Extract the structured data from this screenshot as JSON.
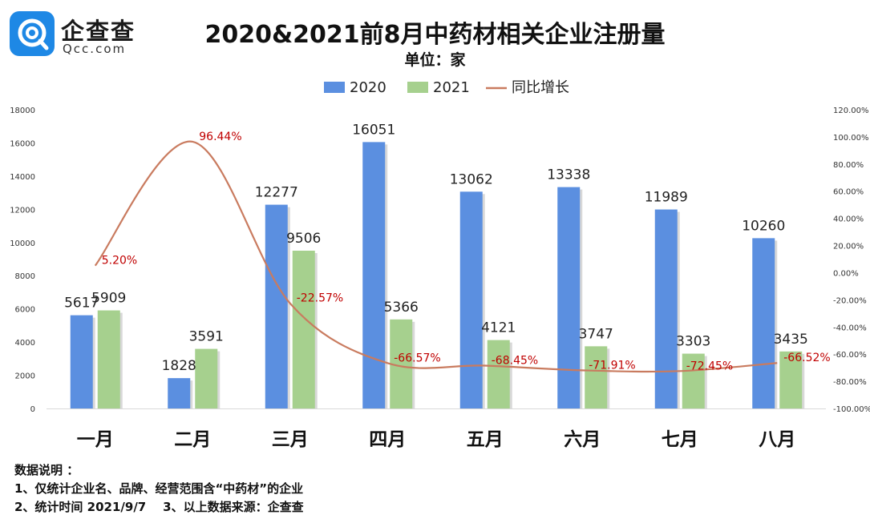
{
  "brand": {
    "name": "企查查",
    "domain_text": "Qcc.com"
  },
  "header": {
    "title": "2020&2021前8月中药材相关企业注册量",
    "unit": "单位：家"
  },
  "chart_data": {
    "type": "bar",
    "categories": [
      "一月",
      "二月",
      "三月",
      "四月",
      "五月",
      "六月",
      "七月",
      "八月"
    ],
    "series": [
      {
        "name": "2020",
        "type": "bar",
        "color": "#5b8fe0",
        "values": [
          5617,
          1828,
          12277,
          16051,
          13062,
          13338,
          11989,
          10260
        ]
      },
      {
        "name": "2021",
        "type": "bar",
        "color": "#a6d08e",
        "values": [
          5909,
          3591,
          9506,
          5366,
          4121,
          3747,
          3303,
          3435
        ]
      },
      {
        "name": "同比增长",
        "type": "line",
        "axis": "right",
        "color": "#c97b5f",
        "values": [
          5.2,
          96.44,
          -22.57,
          -66.57,
          -68.45,
          -71.91,
          -72.45,
          -66.52
        ],
        "labels": [
          "5.20%",
          "96.44%",
          "-22.57%",
          "-66.57%",
          "-68.45%",
          "-71.91%",
          "-72.45%",
          "-66.52%"
        ]
      }
    ],
    "y_left": {
      "min": 0,
      "max": 18000,
      "step": 2000,
      "ticks": [
        "0",
        "2000",
        "4000",
        "6000",
        "8000",
        "10000",
        "12000",
        "14000",
        "16000",
        "18000"
      ]
    },
    "y_right": {
      "min": -100,
      "max": 120,
      "step": 20,
      "ticks": [
        "-100.00%",
        "-80.00%",
        "-60.00%",
        "-40.00%",
        "-20.00%",
        "0.00%",
        "20.00%",
        "40.00%",
        "60.00%",
        "80.00%",
        "100.00%",
        "120.00%"
      ]
    },
    "legend_position": "top-center",
    "grid": false,
    "line_label_color": "#c00000"
  },
  "notes": {
    "heading": "数据说明 ：",
    "line1": "1、仅统计企业名、品牌、经营范围含“中药材”的企业",
    "line2": "2、统计时间 2021/9/7    3、以上数据来源：企查查"
  }
}
